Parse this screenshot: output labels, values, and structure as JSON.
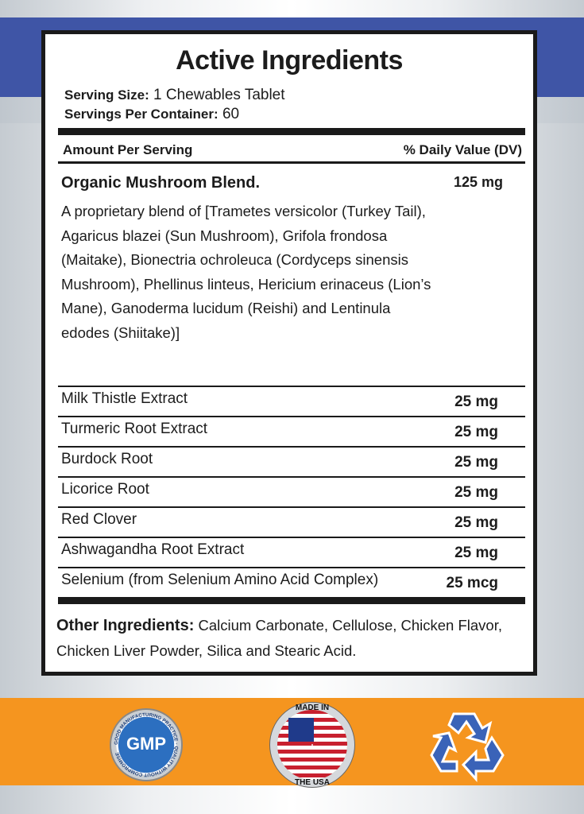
{
  "title": "Active Ingredients",
  "serving_size_label": "Serving Size:",
  "serving_size": "1 Chewables Tablet",
  "servings_label": "Servings Per Container:",
  "servings": "60",
  "header": {
    "amount": "Amount  Per Serving",
    "dv": "% Daily Value (DV)"
  },
  "blend": {
    "name": "Organic Mushroom Blend.",
    "amount": "125 mg",
    "description": "A proprietary blend of [Trametes versicolor (Turkey Tail), Agaricus blazei (Sun Mushroom), Grifola frondosa (Maitake), Bionectria ochroleuca (Cordyceps sinensis Mushroom), Phellinus linteus, Hericium erinaceus (Lion’s Mane), Ganoderma lucidum (Reishi) and Lentinula edodes (Shiitake)]"
  },
  "ingredients": [
    {
      "name": "Milk Thistle Extract",
      "amount": "25 mg"
    },
    {
      "name": "Turmeric Root Extract",
      "amount": "25 mg"
    },
    {
      "name": "Burdock Root",
      "amount": "25 mg"
    },
    {
      "name": "Licorice Root",
      "amount": "25 mg"
    },
    {
      "name": "Red Clover",
      "amount": "25 mg"
    },
    {
      "name": "Ashwagandha Root Extract",
      "amount": "25 mg"
    },
    {
      "name": "Selenium (from Selenium Amino Acid Complex)",
      "amount": "25 mcg"
    }
  ],
  "other": {
    "label": "Other Ingredients:",
    "text": " Calcium Carbonate, Cellulose, Chicken Flavor, Chicken Liver Powder, Silica and Stearic Acid."
  },
  "badges": {
    "gmp": "GMP",
    "gmp_ring": "GOOD MANUFACTURING PRACTICE · QUALITY WITHOUT COMPROMISE",
    "usa_top": "MADE IN",
    "usa_bottom": "THE USA"
  },
  "colors": {
    "blue_band": "#3f55a6",
    "orange_band": "#f5951f",
    "recycle": "#3a63b8"
  }
}
